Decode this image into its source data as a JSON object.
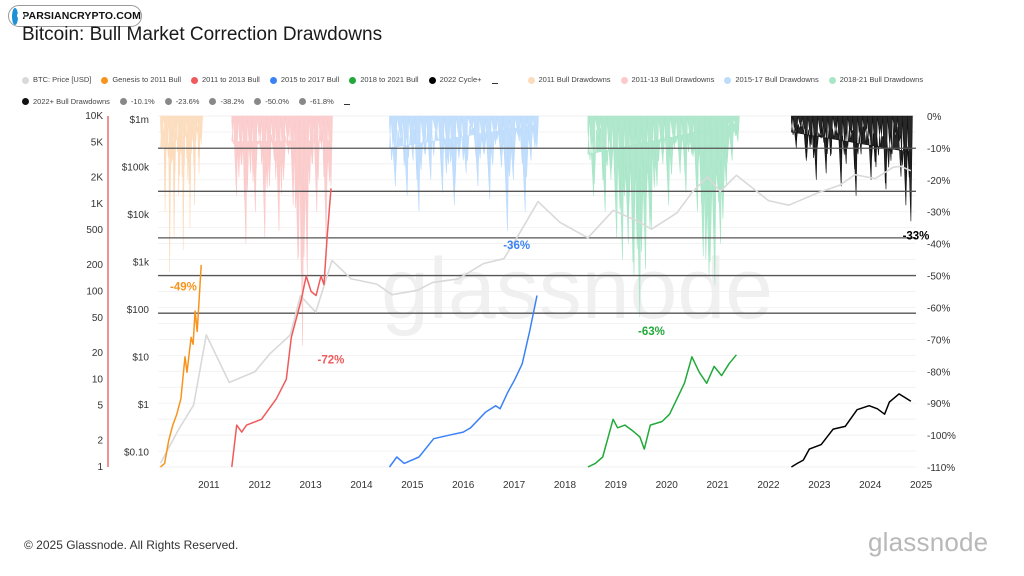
{
  "badge": {
    "text": "PARSIANCRYPTO.COM",
    "icon": "parsiancrypto-logo-icon"
  },
  "title": "Bitcoin: Bull Market Correction Drawdowns",
  "footer": "© 2025 Glassnode. All Rights Reserved.",
  "wordmark": "glassnode",
  "legend": [
    {
      "label": "BTC: Price [USD]",
      "color": "#d9d9d9",
      "kind": "dot"
    },
    {
      "label": "Genesis to 2011 Bull",
      "color": "#f7941d",
      "kind": "dot"
    },
    {
      "label": "2011 to 2013 Bull",
      "color": "#ef5a5a",
      "kind": "dot"
    },
    {
      "label": "2015 to 2017 Bull",
      "color": "#3b82f6",
      "kind": "dot"
    },
    {
      "label": "2018 to 2021 Bull",
      "color": "#22a93a",
      "kind": "dot"
    },
    {
      "label": "2022 Cycle+",
      "color": "#000000",
      "kind": "dot"
    },
    {
      "label": "",
      "color": "#333333",
      "kind": "dash"
    },
    {
      "label": "2011 Bull Drawdowns",
      "color": "#fcdcbc",
      "kind": "dot"
    },
    {
      "label": "2011-13 Bull Drawdowns",
      "color": "#fbcaca",
      "kind": "dot"
    },
    {
      "label": "2015-17 Bull Drawdowns",
      "color": "#bcdcfc",
      "kind": "dot"
    },
    {
      "label": "2018-21 Bull Drawdowns",
      "color": "#a8e6c8",
      "kind": "dot"
    },
    {
      "label": "2022+ Bull Drawdowns",
      "color": "#111111",
      "kind": "dot"
    },
    {
      "label": "-10.1%",
      "color": "#888888",
      "kind": "dot"
    },
    {
      "label": "-23.6%",
      "color": "#888888",
      "kind": "dot"
    },
    {
      "label": "-38.2%",
      "color": "#888888",
      "kind": "dot"
    },
    {
      "label": "-50.0%",
      "color": "#888888",
      "kind": "dot"
    },
    {
      "label": "-61.8%",
      "color": "#888888",
      "kind": "dot"
    },
    {
      "label": "",
      "color": "#333333",
      "kind": "dash"
    }
  ],
  "chart_data": {
    "type": "line",
    "title": "Bitcoin: Bull Market Correction Drawdowns",
    "x_axis": {
      "ticks": [
        "2011",
        "2012",
        "2013",
        "2014",
        "2015",
        "2016",
        "2017",
        "2018",
        "2019",
        "2020",
        "2021",
        "2022",
        "2023",
        "2024",
        "2025"
      ],
      "range": [
        2010.5,
        2025.4
      ]
    },
    "y_axis_left_outer": {
      "scale": "log",
      "ticks": [
        "10K",
        "5K",
        "2K",
        "1K",
        "500",
        "200",
        "100",
        "50",
        "20",
        "10",
        "5",
        "2",
        "1"
      ]
    },
    "y_axis_left_inner": {
      "scale": "log",
      "ticks": [
        "$1m",
        "$100k",
        "$10k",
        "$1k",
        "$100",
        "$10",
        "$1",
        "$0.10"
      ]
    },
    "y_axis_right": {
      "ticks": [
        "0%",
        "-10%",
        "-20%",
        "-30%",
        "-40%",
        "-50%",
        "-60%",
        "-70%",
        "-80%",
        "-90%",
        "-100%",
        "-110%"
      ],
      "range": [
        0,
        -110
      ]
    },
    "fib_levels": [
      -10.1,
      -23.6,
      -38.2,
      -50.0,
      -61.8
    ],
    "series": [
      {
        "name": "BTC: Price [USD]",
        "color": "#d9d9d9",
        "points": [
          [
            2010.55,
            0.06
          ],
          [
            2010.9,
            0.3
          ],
          [
            2011.2,
            1
          ],
          [
            2011.45,
            30
          ],
          [
            2011.9,
            3
          ],
          [
            2012.4,
            5
          ],
          [
            2012.7,
            12
          ],
          [
            2013.1,
            30
          ],
          [
            2013.3,
            200
          ],
          [
            2013.6,
            90
          ],
          [
            2013.92,
            1100
          ],
          [
            2014.3,
            450
          ],
          [
            2014.8,
            350
          ],
          [
            2015.1,
            210
          ],
          [
            2015.6,
            260
          ],
          [
            2015.9,
            380
          ],
          [
            2016.4,
            450
          ],
          [
            2016.9,
            950
          ],
          [
            2017.3,
            1200
          ],
          [
            2017.6,
            4000
          ],
          [
            2017.97,
            19000
          ],
          [
            2018.4,
            7000
          ],
          [
            2018.95,
            3300
          ],
          [
            2019.45,
            12500
          ],
          [
            2019.95,
            7200
          ],
          [
            2020.2,
            5000
          ],
          [
            2020.7,
            11000
          ],
          [
            2021.0,
            30000
          ],
          [
            2021.3,
            63000
          ],
          [
            2021.55,
            31000
          ],
          [
            2021.87,
            68000
          ],
          [
            2022.5,
            20000
          ],
          [
            2022.9,
            16000
          ],
          [
            2023.5,
            30000
          ],
          [
            2023.9,
            42000
          ],
          [
            2024.2,
            70000
          ],
          [
            2024.6,
            58000
          ],
          [
            2024.95,
            100000
          ],
          [
            2025.1,
            105000
          ],
          [
            2025.3,
            85000
          ]
        ]
      },
      {
        "name": "Genesis to 2011 Bull",
        "color": "#f7941d",
        "points": [
          [
            0,
            1
          ],
          [
            0.1,
            1.1
          ],
          [
            0.2,
            2
          ],
          [
            0.3,
            3
          ],
          [
            0.4,
            4
          ],
          [
            0.5,
            6
          ],
          [
            0.6,
            18
          ],
          [
            0.65,
            12
          ],
          [
            0.75,
            30
          ],
          [
            0.8,
            25
          ],
          [
            0.85,
            60
          ],
          [
            0.9,
            35
          ],
          [
            1.0,
            200
          ]
        ]
      },
      {
        "name": "2011 to 2013 Bull",
        "color": "#ef5a5a",
        "points": [
          [
            0,
            1
          ],
          [
            0.05,
            3
          ],
          [
            0.1,
            2.5
          ],
          [
            0.15,
            3
          ],
          [
            0.3,
            3.5
          ],
          [
            0.45,
            6
          ],
          [
            0.55,
            10
          ],
          [
            0.6,
            30
          ],
          [
            0.7,
            80
          ],
          [
            0.75,
            150
          ],
          [
            0.8,
            100
          ],
          [
            0.85,
            90
          ],
          [
            0.9,
            150
          ],
          [
            0.93,
            120
          ],
          [
            0.96,
            400
          ],
          [
            1.0,
            1500
          ]
        ]
      },
      {
        "name": "2015 to 2017 Bull",
        "color": "#3b82f6",
        "points": [
          [
            0,
            1
          ],
          [
            0.05,
            1.3
          ],
          [
            0.1,
            1.1
          ],
          [
            0.2,
            1.3
          ],
          [
            0.3,
            2.1
          ],
          [
            0.4,
            2.3
          ],
          [
            0.5,
            2.5
          ],
          [
            0.55,
            2.8
          ],
          [
            0.65,
            4.2
          ],
          [
            0.72,
            5
          ],
          [
            0.75,
            4.6
          ],
          [
            0.8,
            7
          ],
          [
            0.85,
            10
          ],
          [
            0.9,
            15
          ],
          [
            0.95,
            35
          ],
          [
            1.0,
            90
          ]
        ]
      },
      {
        "name": "2018 to 2021 Bull",
        "color": "#22a93a",
        "points": [
          [
            0,
            1
          ],
          [
            0.05,
            1.1
          ],
          [
            0.1,
            1.3
          ],
          [
            0.17,
            3.5
          ],
          [
            0.2,
            2.8
          ],
          [
            0.25,
            3
          ],
          [
            0.3,
            2.6
          ],
          [
            0.35,
            2.2
          ],
          [
            0.38,
            1.6
          ],
          [
            0.42,
            3
          ],
          [
            0.5,
            3.3
          ],
          [
            0.55,
            4
          ],
          [
            0.6,
            6
          ],
          [
            0.65,
            9
          ],
          [
            0.7,
            18
          ],
          [
            0.75,
            12
          ],
          [
            0.8,
            9
          ],
          [
            0.85,
            14
          ],
          [
            0.9,
            11
          ],
          [
            0.95,
            15
          ],
          [
            1.0,
            19
          ]
        ]
      },
      {
        "name": "2022 Cycle+",
        "color": "#000000",
        "points": [
          [
            0,
            1
          ],
          [
            0.05,
            1.1
          ],
          [
            0.1,
            1.2
          ],
          [
            0.15,
            1.6
          ],
          [
            0.25,
            1.8
          ],
          [
            0.35,
            2.7
          ],
          [
            0.45,
            2.9
          ],
          [
            0.55,
            4.5
          ],
          [
            0.65,
            5
          ],
          [
            0.72,
            4.6
          ],
          [
            0.78,
            4
          ],
          [
            0.82,
            5.5
          ],
          [
            0.9,
            6.8
          ],
          [
            0.95,
            6.2
          ],
          [
            1.0,
            5.6
          ]
        ]
      }
    ],
    "drawdowns": [
      {
        "name": "2011 Bull Drawdowns",
        "color": "#fcdcbc",
        "x": [
          2010.55,
          2011.35
        ],
        "peaks": [
          -10,
          -3,
          -30,
          -8,
          -49,
          -15,
          -38,
          -5,
          -25,
          -12,
          -42,
          -6,
          -20,
          -35,
          -8,
          -28,
          -4,
          -18,
          -9
        ]
      },
      {
        "name": "2011-13 Bull Drawdowns",
        "color": "#fbcaca",
        "x": [
          2011.95,
          2013.9
        ],
        "peaks": [
          -8,
          -25,
          -15,
          -40,
          -18,
          -30,
          -10,
          -38,
          -22,
          -14,
          -36,
          -20,
          -12,
          -28,
          -45,
          -72,
          -50,
          -15,
          -30,
          -10,
          -40,
          -22
        ]
      },
      {
        "name": "2015-17 Bull Drawdowns",
        "color": "#bcdcfc",
        "x": [
          2015.05,
          2017.95
        ],
        "peaks": [
          -10,
          -22,
          -8,
          -25,
          -14,
          -30,
          -12,
          -20,
          -6,
          -24,
          -15,
          -28,
          -10,
          -18,
          -5,
          -22,
          -12,
          -26,
          -9,
          -16,
          -36,
          -20,
          -8,
          -30,
          -14,
          -10
        ]
      },
      {
        "name": "2018-21 Bull Drawdowns",
        "color": "#a8e6c8",
        "x": [
          2018.95,
          2021.9
        ],
        "peaks": [
          -12,
          -25,
          -8,
          -30,
          -20,
          -38,
          -45,
          -40,
          -50,
          -63,
          -48,
          -35,
          -22,
          -15,
          -28,
          -10,
          -18,
          -24,
          -12,
          -30,
          -44,
          -50,
          -53,
          -40,
          -22,
          -14,
          -8
        ]
      },
      {
        "name": "2022+ Bull Drawdowns",
        "color": "#111111",
        "x": [
          2022.95,
          2025.3
        ],
        "peaks": [
          -5,
          -10,
          -4,
          -14,
          -9,
          -20,
          -7,
          -18,
          -12,
          -6,
          -22,
          -15,
          -8,
          -25,
          -12,
          -9,
          -20,
          -16,
          -10,
          -23,
          -14,
          -7,
          -19,
          -28,
          -33
        ]
      }
    ],
    "annotations": [
      {
        "text": "-49%",
        "color": "#f7941d",
        "x": 2011.0,
        "y_pct": -49
      },
      {
        "text": "-72%",
        "color": "#ef5a5a",
        "x": 2013.9,
        "y_pct": -72
      },
      {
        "text": "-36%",
        "color": "#3b82f6",
        "x": 2017.55,
        "y_pct": -36
      },
      {
        "text": "-63%",
        "color": "#22a93a",
        "x": 2020.2,
        "y_pct": -63
      },
      {
        "text": "-33%",
        "color": "#000000",
        "x": 2025.4,
        "y_pct": -33
      }
    ],
    "watermark": "glassnode"
  }
}
